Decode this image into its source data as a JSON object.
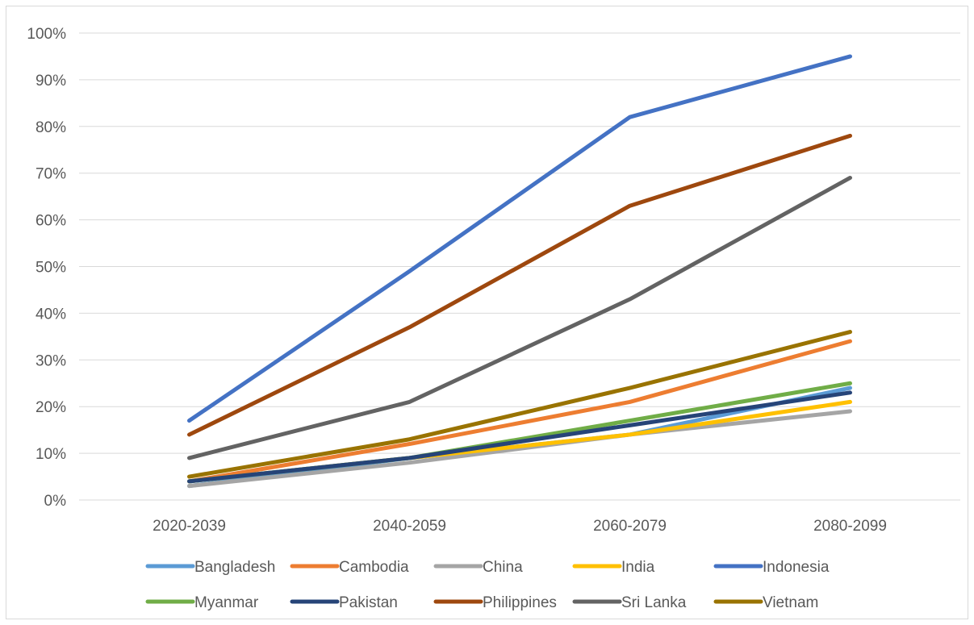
{
  "chart_data": {
    "type": "line",
    "title": "",
    "xlabel": "",
    "ylabel": "",
    "categories": [
      "2020-2039",
      "2040-2059",
      "2060-2079",
      "2080-2099"
    ],
    "ylim": [
      0,
      100
    ],
    "yticks": [
      0,
      10,
      20,
      30,
      40,
      50,
      60,
      70,
      80,
      90,
      100
    ],
    "ytick_labels": [
      "0%",
      "10%",
      "20%",
      "30%",
      "40%",
      "50%",
      "60%",
      "70%",
      "80%",
      "90%",
      "100%"
    ],
    "grid": "horizontal",
    "legend_position": "bottom",
    "series": [
      {
        "name": "Bangladesh",
        "color": "#5B9BD5",
        "values": [
          3,
          9,
          14,
          24
        ]
      },
      {
        "name": "Cambodia",
        "color": "#ED7D31",
        "values": [
          4,
          12,
          21,
          34
        ]
      },
      {
        "name": "China",
        "color": "#A5A5A5",
        "values": [
          3,
          8,
          14,
          19
        ]
      },
      {
        "name": "India",
        "color": "#FFC000",
        "values": [
          4,
          9,
          14,
          21
        ]
      },
      {
        "name": "Indonesia",
        "color": "#4472C4",
        "values": [
          17,
          49,
          82,
          95
        ]
      },
      {
        "name": "Myanmar",
        "color": "#70AD47",
        "values": [
          4,
          9,
          17,
          25
        ]
      },
      {
        "name": "Pakistan",
        "color": "#264478",
        "values": [
          4,
          9,
          16,
          23
        ]
      },
      {
        "name": "Philippines",
        "color": "#9E480E",
        "values": [
          14,
          37,
          63,
          78
        ]
      },
      {
        "name": "Sri Lanka",
        "color": "#636363",
        "values": [
          9,
          21,
          43,
          69
        ]
      },
      {
        "name": "Vietnam",
        "color": "#997300",
        "values": [
          5,
          13,
          24,
          36
        ]
      }
    ]
  }
}
